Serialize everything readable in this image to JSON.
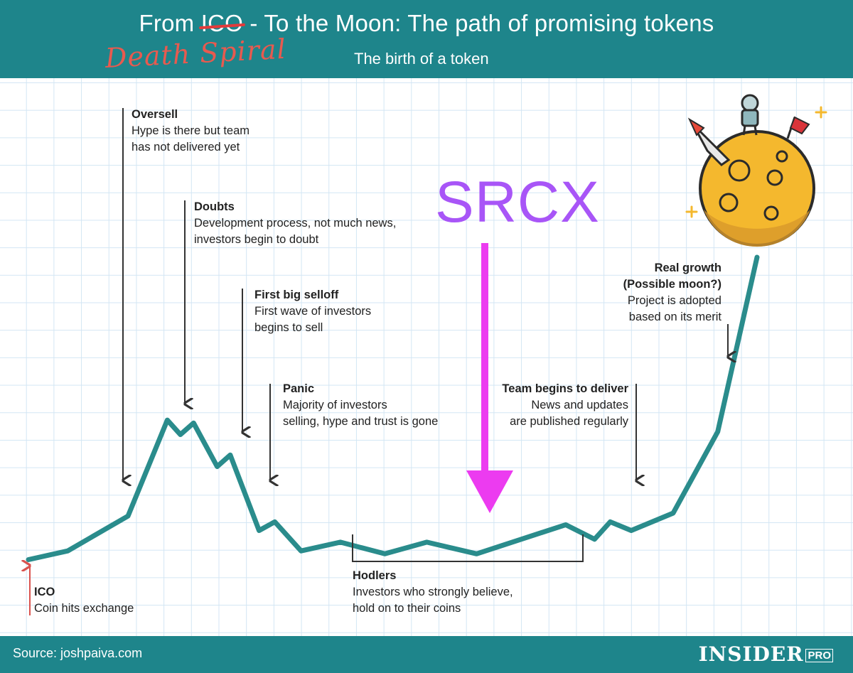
{
  "theme": {
    "teal": "#1e858b",
    "line": "#2a8c8c",
    "arrow_magenta": "#ec3bf0",
    "srcx_purple": "#a855f7",
    "red_note": "#e85a4f"
  },
  "header": {
    "title_pre": "From ",
    "title_struck": "ICO",
    "title_post": " - To the Moon: The path of promising tokens",
    "handwritten_note": "Death Spiral",
    "subtitle": "The birth of a token"
  },
  "overlay": {
    "srcx_label": "SRCX"
  },
  "chart_data": {
    "type": "line",
    "title": "From ICO - To the Moon: The path of promising tokens",
    "subtitle": "The birth of a token",
    "xlabel": "",
    "ylabel": "",
    "axes_visible": false,
    "grid": true,
    "series": [
      {
        "name": "",
        "x": [
          0,
          1.5,
          3.8,
          5.3,
          5.8,
          6.3,
          7.2,
          7.7,
          8.8,
          9.4,
          10.4,
          11.9,
          13.6,
          15.2,
          17.1,
          18.8,
          20.5,
          21.6,
          22.2,
          23.0,
          24.6,
          26.3,
          27.8
        ],
        "y": [
          0.6,
          0.9,
          2.1,
          5.4,
          4.9,
          5.3,
          3.8,
          4.2,
          1.6,
          1.9,
          0.9,
          1.2,
          0.8,
          1.2,
          0.8,
          1.3,
          1.8,
          1.3,
          1.9,
          1.6,
          2.2,
          5.0,
          11.0
        ]
      }
    ],
    "xlim": [
      -1,
      30
    ],
    "ylim": [
      0,
      15.5
    ],
    "annotations": [
      {
        "id": "ico",
        "title": "ICO",
        "text": [
          "Coin hits exchange"
        ],
        "x": 0,
        "arrow": "up",
        "arrow_color": "#d9534f",
        "align": "left"
      },
      {
        "id": "oversell",
        "title": "Oversell",
        "text": [
          "Hype is there but team",
          "has not delivered yet"
        ],
        "x": 3.6,
        "arrow": "down",
        "align": "left"
      },
      {
        "id": "doubts",
        "title": "Doubts",
        "text": [
          "Development process, not much news,",
          "investors begin to doubt"
        ],
        "x": 5.7,
        "arrow": "down",
        "align": "left"
      },
      {
        "id": "first-selloff",
        "title": "First big selloff",
        "text": [
          "First wave of investors",
          "begins to sell"
        ],
        "x": 7.7,
        "arrow": "down",
        "align": "left"
      },
      {
        "id": "panic",
        "title": "Panic",
        "text": [
          "Majority of investors",
          "selling, hype and trust is gone"
        ],
        "x": 8.8,
        "arrow": "down",
        "align": "left"
      },
      {
        "id": "hodlers",
        "title": "Hodlers",
        "text": [
          "Investors who strongly believe,",
          "hold on to their coins"
        ],
        "x_range": [
          11.9,
          20.3
        ],
        "arrow": "bracket",
        "align": "left"
      },
      {
        "id": "team-delivers",
        "title": "Team begins to deliver",
        "text": [
          "News and updates",
          "are published regularly"
        ],
        "x": 22.2,
        "arrow": "down",
        "align": "right"
      },
      {
        "id": "real-growth",
        "title": "Real growth",
        "text": [
          "(Possible moon?)",
          "Project is adopted",
          "based on its merit"
        ],
        "x": 25.3,
        "arrow": "down",
        "align": "right"
      },
      {
        "id": "srcx",
        "title": "SRCX",
        "text": [],
        "x": 16.6,
        "arrow": "down",
        "arrow_color": "#ec3bf0",
        "align": "center"
      }
    ]
  },
  "footer": {
    "source": "Source: joshpaiva.com",
    "logo_main": "INSIDER",
    "logo_pro": "PRO"
  }
}
